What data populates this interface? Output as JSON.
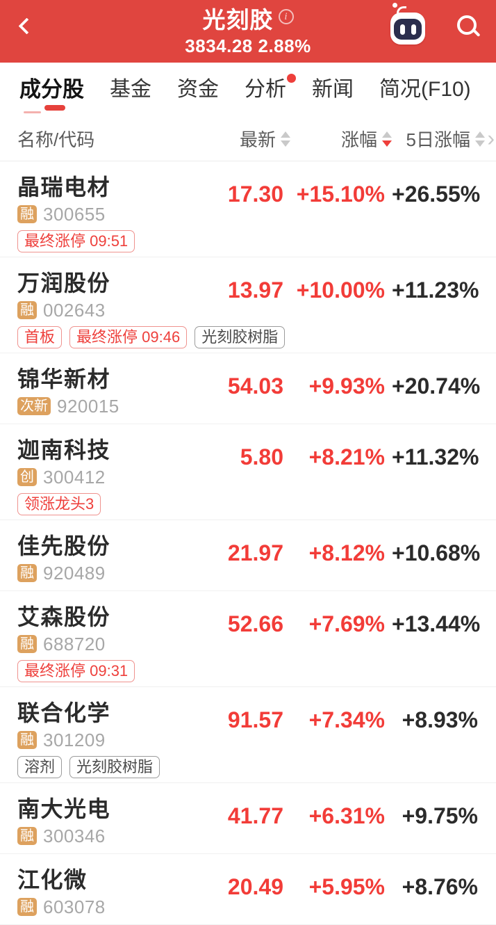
{
  "header": {
    "title": "光刻胶",
    "subtitle": "3834.28 2.88%"
  },
  "icons": {
    "info": "i",
    "more_columns": "›"
  },
  "tabs": [
    {
      "label": "成分股",
      "active": true,
      "dot": false
    },
    {
      "label": "基金",
      "active": false,
      "dot": false
    },
    {
      "label": "资金",
      "active": false,
      "dot": false
    },
    {
      "label": "分析",
      "active": false,
      "dot": true
    },
    {
      "label": "新闻",
      "active": false,
      "dot": false
    },
    {
      "label": "简况(F10)",
      "active": false,
      "dot": false
    }
  ],
  "table": {
    "columns": [
      {
        "label": "名称/代码",
        "sort": null
      },
      {
        "label": "最新",
        "sort": "none"
      },
      {
        "label": "涨幅",
        "sort": "desc"
      },
      {
        "label": "5日涨幅",
        "sort": "none"
      }
    ]
  },
  "rows": [
    {
      "name": "晶瑞电材",
      "badge": "融",
      "code": "300655",
      "price": "17.30",
      "change": "+15.10%",
      "change5d": "+26.55%",
      "tags": [
        {
          "text": "最终涨停 09:51",
          "type": "red"
        }
      ]
    },
    {
      "name": "万润股份",
      "badge": "融",
      "code": "002643",
      "price": "13.97",
      "change": "+10.00%",
      "change5d": "+11.23%",
      "tags": [
        {
          "text": "首板",
          "type": "red"
        },
        {
          "text": "最终涨停 09:46",
          "type": "red"
        },
        {
          "text": "光刻胶树脂",
          "type": "gray"
        }
      ]
    },
    {
      "name": "锦华新材",
      "badge": "次新",
      "code": "920015",
      "price": "54.03",
      "change": "+9.93%",
      "change5d": "+20.74%",
      "tags": []
    },
    {
      "name": "迦南科技",
      "badge": "创",
      "code": "300412",
      "price": "5.80",
      "change": "+8.21%",
      "change5d": "+11.32%",
      "tags": [
        {
          "text": "领涨龙头3",
          "type": "red"
        }
      ]
    },
    {
      "name": "佳先股份",
      "badge": "融",
      "code": "920489",
      "price": "21.97",
      "change": "+8.12%",
      "change5d": "+10.68%",
      "tags": []
    },
    {
      "name": "艾森股份",
      "badge": "融",
      "code": "688720",
      "price": "52.66",
      "change": "+7.69%",
      "change5d": "+13.44%",
      "tags": [
        {
          "text": "最终涨停 09:31",
          "type": "red"
        }
      ]
    },
    {
      "name": "联合化学",
      "badge": "融",
      "code": "301209",
      "price": "91.57",
      "change": "+7.34%",
      "change5d": "+8.93%",
      "tags": [
        {
          "text": "溶剂",
          "type": "gray"
        },
        {
          "text": "光刻胶树脂",
          "type": "gray"
        }
      ]
    },
    {
      "name": "南大光电",
      "badge": "融",
      "code": "300346",
      "price": "41.77",
      "change": "+6.31%",
      "change5d": "+9.75%",
      "tags": []
    },
    {
      "name": "江化微",
      "badge": "融",
      "code": "603078",
      "price": "20.49",
      "change": "+5.95%",
      "change5d": "+8.76%",
      "tags": []
    }
  ],
  "colors": {
    "header_bg": "#e0453f",
    "accent_red": "#ee3f3b",
    "value_red": "#f23c38",
    "badge_bg": "#dda15e",
    "dark_text": "#2b2b2b"
  }
}
